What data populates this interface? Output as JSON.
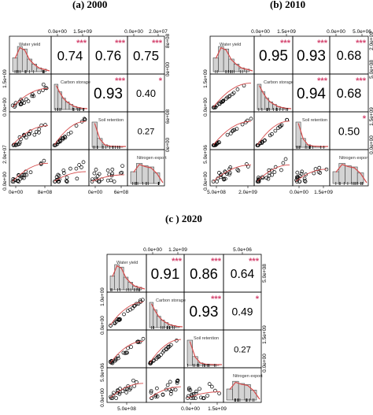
{
  "figure": {
    "colors": {
      "smooth_line": "#d44a4a",
      "stars": "#d4456f",
      "hist_fill": "#d3d3d3",
      "points": "#000000"
    }
  },
  "chart_data": [
    {
      "type": "scatter-matrix",
      "panel_label": "(a) 2000",
      "variables": [
        "Water yield",
        "Carbon storage",
        "Soil retention",
        "Nitrogen export"
      ],
      "correlations": [
        {
          "row": 0,
          "col": 1,
          "r": "0.74",
          "stars": "***"
        },
        {
          "row": 0,
          "col": 2,
          "r": "0.76",
          "stars": "***"
        },
        {
          "row": 0,
          "col": 3,
          "r": "0.75",
          "stars": "***"
        },
        {
          "row": 1,
          "col": 2,
          "r": "0.93",
          "stars": "***"
        },
        {
          "row": 1,
          "col": 3,
          "r": "0.40",
          "stars": "*"
        },
        {
          "row": 2,
          "col": 3,
          "r": "0.27",
          "stars": ""
        }
      ],
      "top_ticks": [
        {
          "col": 1,
          "labels": [
            "0.0e+00",
            "1.5e+09"
          ]
        },
        {
          "col": 3,
          "labels": [
            "0.0e+00",
            "2.0e+07"
          ]
        }
      ],
      "bottom_ticks": [
        {
          "col": 0,
          "labels": [
            "0e+00",
            "8e+08"
          ]
        },
        {
          "col": 2,
          "labels": [
            "0e+00",
            "6e+08"
          ]
        }
      ],
      "left_ticks": [
        {
          "row": 1,
          "labels": [
            "0.0e+00",
            "1.5e+09"
          ]
        },
        {
          "row": 3,
          "labels": [
            "0.0e+00",
            "2.0e+07"
          ]
        }
      ],
      "right_ticks": [
        {
          "row": 0,
          "labels": [
            "0e+00",
            "8e+08"
          ]
        },
        {
          "row": 2,
          "labels": [
            "0e+00",
            "6e+08"
          ]
        }
      ]
    },
    {
      "type": "scatter-matrix",
      "panel_label": "(b) 2010",
      "variables": [
        "Water yield",
        "Carbon storage",
        "Soil retention",
        "Nitrogen export"
      ],
      "correlations": [
        {
          "row": 0,
          "col": 1,
          "r": "0.95",
          "stars": "***"
        },
        {
          "row": 0,
          "col": 2,
          "r": "0.93",
          "stars": "***"
        },
        {
          "row": 0,
          "col": 3,
          "r": "0.68",
          "stars": "***"
        },
        {
          "row": 1,
          "col": 2,
          "r": "0.94",
          "stars": "***"
        },
        {
          "row": 1,
          "col": 3,
          "r": "0.68",
          "stars": "***"
        },
        {
          "row": 2,
          "col": 3,
          "r": "0.50",
          "stars": "*"
        }
      ],
      "top_ticks": [
        {
          "col": 1,
          "labels": [
            "0.0e+00",
            "1.5e+09"
          ]
        },
        {
          "col": 3,
          "labels": [
            "0.0e+00",
            "5.0e+06"
          ]
        }
      ],
      "bottom_ticks": [
        {
          "col": 0,
          "labels": [
            "5.0e+08",
            "2.0e+09"
          ]
        },
        {
          "col": 2,
          "labels": [
            "0.0e+00",
            "1.5e+09"
          ]
        }
      ],
      "left_ticks": [
        {
          "row": 1,
          "labels": [
            "0.0e+00",
            "1.5e+09"
          ]
        },
        {
          "row": 3,
          "labels": [
            "0.0e+00",
            "5.0e+06"
          ]
        }
      ],
      "right_ticks": [
        {
          "row": 0,
          "labels": [
            "5.0e+08",
            "2.0e+09"
          ]
        },
        {
          "row": 2,
          "labels": [
            "0.0e+00",
            "1.5e+09"
          ]
        }
      ]
    },
    {
      "type": "scatter-matrix",
      "panel_label": "(c ) 2020",
      "variables": [
        "Water yield",
        "Carbon storage",
        "Soil retention",
        "Nitrogen export"
      ],
      "correlations": [
        {
          "row": 0,
          "col": 1,
          "r": "0.91",
          "stars": "***"
        },
        {
          "row": 0,
          "col": 2,
          "r": "0.86",
          "stars": "***"
        },
        {
          "row": 0,
          "col": 3,
          "r": "0.64",
          "stars": "***"
        },
        {
          "row": 1,
          "col": 2,
          "r": "0.93",
          "stars": "***"
        },
        {
          "row": 1,
          "col": 3,
          "r": "0.49",
          "stars": "*"
        },
        {
          "row": 2,
          "col": 3,
          "r": "0.27",
          "stars": ""
        }
      ],
      "top_ticks": [
        {
          "col": 1,
          "labels": [
            "0.0e+00",
            "1.2e+09"
          ]
        },
        {
          "col": 3,
          "labels": [
            "5.0e+06"
          ]
        }
      ],
      "bottom_ticks": [
        {
          "col": 0,
          "labels": [
            "5.0e+08"
          ]
        },
        {
          "col": 2,
          "labels": [
            "0.0e+00",
            "1.5e+09"
          ]
        }
      ],
      "left_ticks": [
        {
          "row": 1,
          "labels": [
            "0.0e+00",
            "1.0e+09"
          ]
        },
        {
          "row": 3,
          "labels": [
            "0.0e+00",
            "5.0e+06"
          ]
        }
      ],
      "right_ticks": [
        {
          "row": 0,
          "labels": [
            "5.0e+08"
          ]
        },
        {
          "row": 2,
          "labels": [
            "0.0e+00",
            "1.5e+09"
          ]
        }
      ]
    }
  ]
}
